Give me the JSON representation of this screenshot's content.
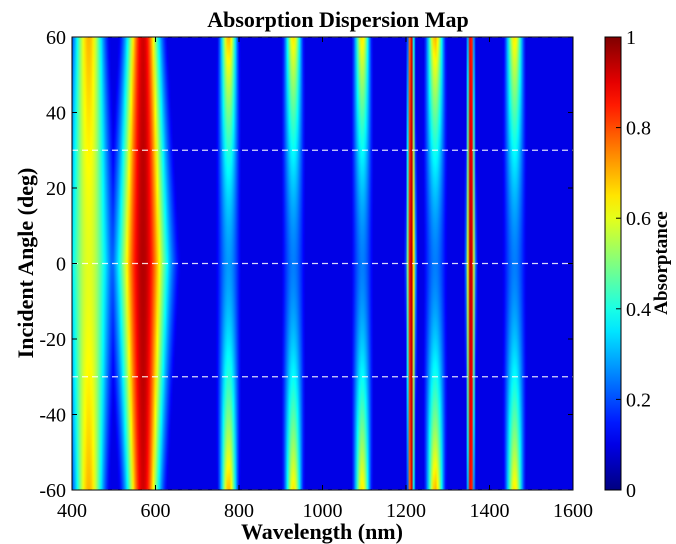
{
  "chart_data": {
    "type": "heatmap",
    "title": "Absorption Dispersion Map",
    "xlabel": "Wavelength (nm)",
    "ylabel": "Incident Angle (deg)",
    "colorbar_label": "Absorptance",
    "xlim": [
      400,
      1600
    ],
    "ylim": [
      -60,
      60
    ],
    "clim": [
      0,
      1
    ],
    "colormap": "jet",
    "x_ticks": [
      "400",
      "600",
      "800",
      "1000",
      "1200",
      "1400",
      "1600"
    ],
    "y_ticks": [
      "60",
      "40",
      "20",
      "0",
      "-20",
      "-40",
      "-60"
    ],
    "colorbar_ticks": [
      "1",
      "0.8",
      "0.6",
      "0.4",
      "0.2",
      "0"
    ],
    "dashed_reference_lines_deg": [
      60,
      30,
      0,
      -30,
      -60
    ],
    "grid": false,
    "absorption_features": [
      {
        "center_nm": 440,
        "width_nm": 55,
        "peak_at_0deg": 0.6,
        "peak_at_60deg": 0.7,
        "note": "broad yellow band at short wavelength"
      },
      {
        "center_nm": 570,
        "width_nm": 60,
        "peak_at_0deg": 0.95,
        "peak_at_60deg": 0.92,
        "note": "broad red band 500-650 nm"
      },
      {
        "center_nm": 775,
        "width_nm": 30,
        "peak_at_0deg": 0.28,
        "peak_at_60deg": 0.7
      },
      {
        "center_nm": 930,
        "width_nm": 30,
        "peak_at_0deg": 0.25,
        "peak_at_60deg": 0.65
      },
      {
        "center_nm": 1095,
        "width_nm": 28,
        "peak_at_0deg": 0.25,
        "peak_at_60deg": 0.65
      },
      {
        "center_nm": 1212,
        "width_nm": 10,
        "peak_at_0deg": 0.97,
        "peak_at_60deg": 0.97,
        "note": "narrow angle-independent resonance"
      },
      {
        "center_nm": 1270,
        "width_nm": 30,
        "peak_at_0deg": 0.25,
        "peak_at_60deg": 0.7
      },
      {
        "center_nm": 1355,
        "width_nm": 10,
        "peak_at_0deg": 0.98,
        "peak_at_60deg": 0.98,
        "note": "narrow angle-independent resonance"
      },
      {
        "center_nm": 1460,
        "width_nm": 30,
        "peak_at_0deg": 0.25,
        "peak_at_60deg": 0.65
      }
    ],
    "background_absorptance": 0.1
  },
  "colors": {
    "background": "#ffffff",
    "axis": "#000000",
    "reference_line": "#ffffff",
    "jet_stops": [
      "#00008f",
      "#0000ff",
      "#00ffff",
      "#ffff00",
      "#ff0000",
      "#800000"
    ]
  }
}
